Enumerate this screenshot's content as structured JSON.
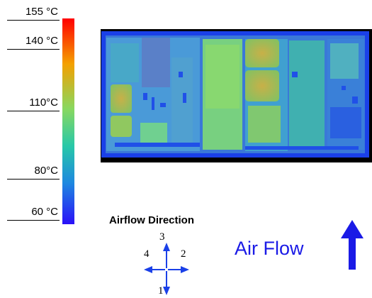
{
  "scale": {
    "labels": [
      "155 °C",
      "140 °C",
      "110°C",
      "80°C",
      "60 °C"
    ]
  },
  "airflow": {
    "title": "Airflow Direction",
    "directions": [
      "3",
      "4",
      "2",
      "1"
    ],
    "label": "Air Flow"
  },
  "colors": {
    "hot": "#ff0000",
    "warm": "#88d860",
    "cool": "#2a10f8",
    "arrow": "#1a1ae6"
  },
  "icons": [
    "up-arrow-icon",
    "compass-arrows-icon"
  ]
}
